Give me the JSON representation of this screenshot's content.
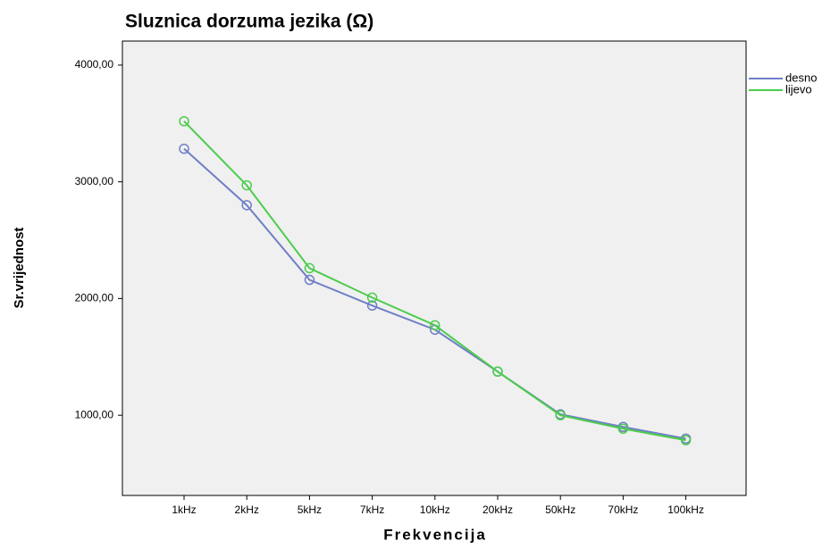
{
  "chart_data": {
    "type": "line",
    "title": "Sluznica dorzuma jezika (Ω)",
    "x_label": "Frekvencija",
    "y_label": "Sr.vrijednost",
    "categories": [
      "1kHz",
      "2kHz",
      "5kHz",
      "7kHz",
      "10kHz",
      "20kHz",
      "50kHz",
      "70kHz",
      "100kHz"
    ],
    "series": [
      {
        "name": "desno",
        "color": "#6f7fc6",
        "values": [
          3283,
          2800,
          2160,
          1940,
          1733,
          1374,
          1008,
          900,
          800
        ]
      },
      {
        "name": "lijevo",
        "color": "#4ccc4c",
        "values": [
          3519,
          2970,
          2260,
          2008,
          1771,
          1374,
          1000,
          885,
          786
        ]
      }
    ],
    "ylim": [
      313,
      4206
    ],
    "yticks": [
      {
        "value": 1000,
        "label": "1000,00"
      },
      {
        "value": 2000,
        "label": "2000,00"
      },
      {
        "value": 3000,
        "label": "3000,00"
      },
      {
        "value": 4000,
        "label": "4000,00"
      }
    ],
    "legend": "right"
  }
}
